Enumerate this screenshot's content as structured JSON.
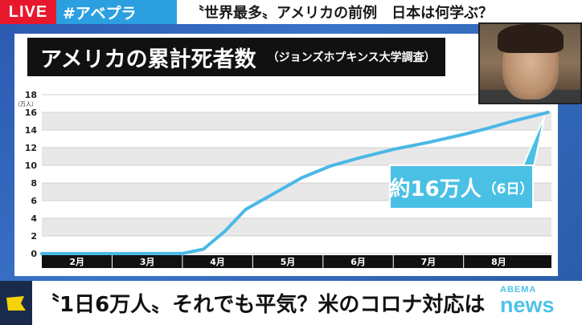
{
  "header": {
    "live": "LIVE",
    "hashtag": "#アベプラ",
    "headline": "〝世界最多〟アメリカの前例　日本は何学ぶ？"
  },
  "chart_data": {
    "type": "line",
    "title": "アメリカの累計死者数",
    "subtitle": "（ジョンズホプキンス大学調査）",
    "yunit": "（万人）",
    "yticks": [
      "0",
      "2",
      "4",
      "6",
      "8",
      "10",
      "12",
      "14",
      "16",
      "18"
    ],
    "ylim": [
      0,
      18
    ],
    "months": [
      "2月",
      "3月",
      "4月",
      "5月",
      "6月",
      "7月",
      "8月"
    ],
    "xlim": [
      0,
      7.25
    ],
    "x": [
      0,
      1,
      2,
      2.3,
      2.6,
      2.9,
      3.3,
      3.7,
      4.1,
      4.5,
      5,
      5.5,
      6,
      6.3,
      6.7,
      7,
      7.2
    ],
    "y": [
      0,
      0,
      0.01,
      0.5,
      2.5,
      5.0,
      6.8,
      8.6,
      9.9,
      10.8,
      11.8,
      12.6,
      13.5,
      14.1,
      15.0,
      15.6,
      16.0
    ],
    "grid": "horizontal bands",
    "line_color": "#4ab8e6",
    "annotation": {
      "main": "約16万人",
      "note": "（6日）"
    }
  },
  "footer": {
    "headline": "〝1日6万人〟それでも平気？米のコロナ対応は",
    "logo_top": "ABEMA",
    "logo_bottom": "news"
  },
  "colors": {
    "live_red": "#e8182c",
    "hashtag_blue": "#2b9fe0",
    "band_gray": "#e8e8e8",
    "callout_blue": "#4ac0e4"
  }
}
